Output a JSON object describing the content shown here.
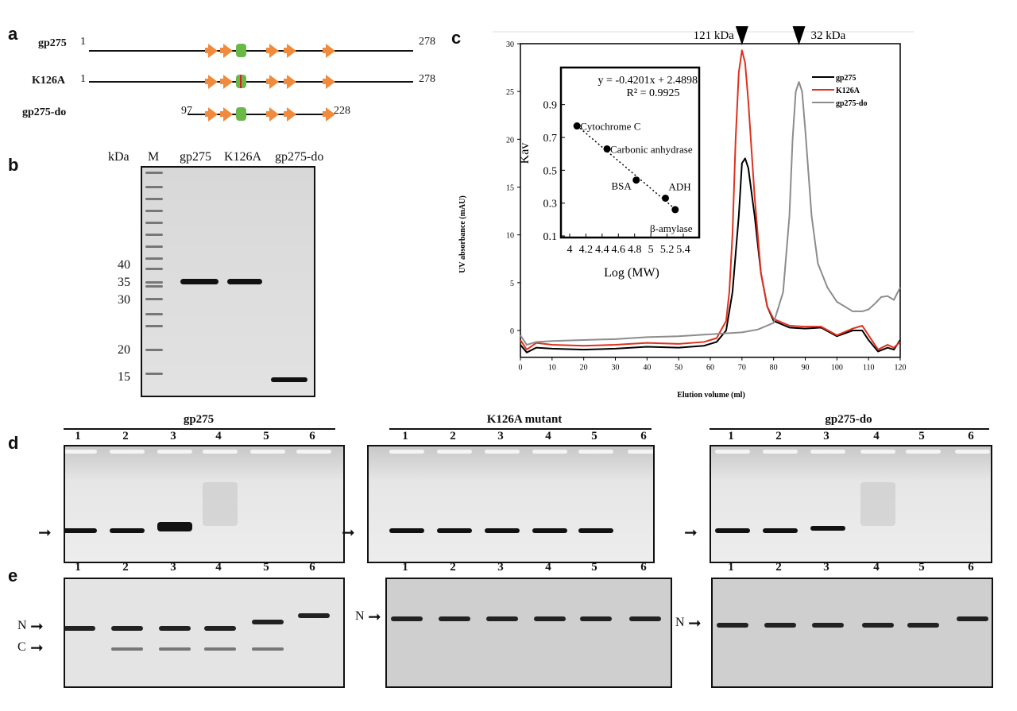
{
  "panel_labels": [
    "a",
    "b",
    "c",
    "d",
    "e"
  ],
  "panel_a": {
    "constructs": [
      {
        "name": "gp275",
        "start": "1",
        "end": "278"
      },
      {
        "name": "K126A",
        "start": "1",
        "end": "278"
      },
      {
        "name": "gp275-do",
        "start": "97",
        "end": "228"
      }
    ],
    "colors": {
      "strand": "#f08a3c",
      "domain": "#6bb84a",
      "mutation": "#d62020"
    }
  },
  "panel_b": {
    "unit_label": "kDa",
    "lanes": [
      "M",
      "gp275",
      "K126A",
      "gp275-do"
    ],
    "markers": [
      "40",
      "35",
      "30",
      "20",
      "15"
    ]
  },
  "chart_data": {
    "type": "line",
    "xlabel": "Elution volume (ml)",
    "ylabel": "UV absorbance (mAU)",
    "xlim": [
      0,
      120
    ],
    "ylim": [
      -2.8,
      30
    ],
    "xticks": [
      "0",
      "10",
      "20",
      "30",
      "40",
      "50",
      "60",
      "70",
      "80",
      "90",
      "100",
      "110",
      "120"
    ],
    "yticks": [
      "0",
      "5",
      "10",
      "15",
      "20",
      "25",
      "30"
    ],
    "legend": "top-right",
    "markers": [
      {
        "label": "121 kDa",
        "x": 70
      },
      {
        "label": "32 kDa",
        "x": 88
      }
    ],
    "series": [
      {
        "name": "gp275",
        "color": "#000000",
        "x": [
          0,
          2,
          5,
          10,
          20,
          30,
          40,
          50,
          58,
          62,
          65,
          67,
          69,
          70,
          71,
          72,
          74,
          76,
          78,
          80,
          85,
          90,
          95,
          100,
          105,
          108,
          110,
          113,
          116,
          118,
          120
        ],
        "y": [
          -1.5,
          -2.3,
          -1.8,
          -1.9,
          -2,
          -1.9,
          -1.7,
          -1.8,
          -1.6,
          -1.2,
          0,
          4,
          12,
          17.5,
          18,
          17,
          12,
          6,
          2.5,
          1,
          0.3,
          0.2,
          0.3,
          -0.6,
          0,
          0,
          -1,
          -2.2,
          -1.8,
          -2,
          -1
        ]
      },
      {
        "name": "K126A",
        "color": "#e0301e",
        "x": [
          0,
          2,
          5,
          10,
          20,
          30,
          40,
          50,
          58,
          62,
          65,
          66,
          67,
          68,
          69,
          70,
          71,
          72,
          74,
          76,
          78,
          80,
          85,
          90,
          95,
          100,
          105,
          108,
          110,
          113,
          116,
          118,
          120
        ],
        "y": [
          -1,
          -2,
          -1.3,
          -1.5,
          -1.6,
          -1.5,
          -1.3,
          -1.4,
          -1.2,
          -0.8,
          1,
          4,
          10,
          20,
          27,
          29.3,
          28,
          24,
          14,
          6,
          2.5,
          1.2,
          0.5,
          0.4,
          0.4,
          -0.5,
          0.2,
          0.5,
          -0.5,
          -2,
          -1.5,
          -1.8,
          -1.2
        ]
      },
      {
        "name": "gp275-do",
        "color": "#8c8c8c",
        "x": [
          0,
          2,
          5,
          10,
          20,
          30,
          40,
          50,
          60,
          70,
          75,
          80,
          83,
          85,
          86,
          87,
          88,
          89,
          90,
          92,
          94,
          97,
          100,
          105,
          108,
          110,
          112,
          114,
          116,
          118,
          120
        ],
        "y": [
          -0.5,
          -1.5,
          -1.2,
          -1.1,
          -1,
          -0.9,
          -0.7,
          -0.6,
          -0.4,
          -0.2,
          0.1,
          0.8,
          4,
          12,
          20,
          25,
          26,
          25,
          21,
          12,
          7,
          4.5,
          3,
          2,
          2,
          2.2,
          2.8,
          3.5,
          3.6,
          3.2,
          4.5
        ]
      }
    ],
    "inset": {
      "type": "scatter",
      "xlabel": "Log (MW)",
      "ylabel": "Kav",
      "xlim": [
        4,
        5.4
      ],
      "ylim": [
        0.1,
        1.0
      ],
      "xticks": [
        "4",
        "4.2",
        "4.4",
        "4.6",
        "4.8",
        "5",
        "5.2",
        "5.4"
      ],
      "yticks": [
        "0.1",
        "0.3",
        "0.5",
        "0.7",
        "0.9"
      ],
      "equation": "y = -0.4201x + 2.4898",
      "r_squared": "R² = 0.9925",
      "fit": {
        "slope": -0.4201,
        "intercept": 2.4898
      },
      "points": [
        {
          "label": "Cytochrome C",
          "x": 4.09,
          "y": 0.77
        },
        {
          "label": "Carbonic anhydrase",
          "x": 4.46,
          "y": 0.63
        },
        {
          "label": "BSA",
          "x": 4.82,
          "y": 0.44
        },
        {
          "label": "ADH",
          "x": 5.18,
          "y": 0.33
        },
        {
          "label": "β-amylase",
          "x": 5.3,
          "y": 0.26
        }
      ]
    }
  },
  "panel_d": {
    "gels": [
      {
        "title": "gp275",
        "lanes": [
          "1",
          "2",
          "3",
          "4",
          "5",
          "6"
        ]
      },
      {
        "title": "K126A mutant",
        "lanes": [
          "1",
          "2",
          "3",
          "4",
          "5",
          "6"
        ]
      },
      {
        "title": "gp275-do",
        "lanes": [
          "1",
          "2",
          "3",
          "4",
          "5",
          "6"
        ]
      }
    ]
  },
  "panel_e": {
    "gels": [
      {
        "lanes": [
          "1",
          "2",
          "3",
          "4",
          "5",
          "6"
        ],
        "arrows": [
          "N",
          "C"
        ]
      },
      {
        "lanes": [
          "1",
          "2",
          "3",
          "4",
          "5",
          "6"
        ],
        "arrows": [
          "N"
        ]
      },
      {
        "lanes": [
          "1",
          "2",
          "3",
          "4",
          "5",
          "6"
        ],
        "arrows": [
          "N"
        ]
      }
    ]
  }
}
